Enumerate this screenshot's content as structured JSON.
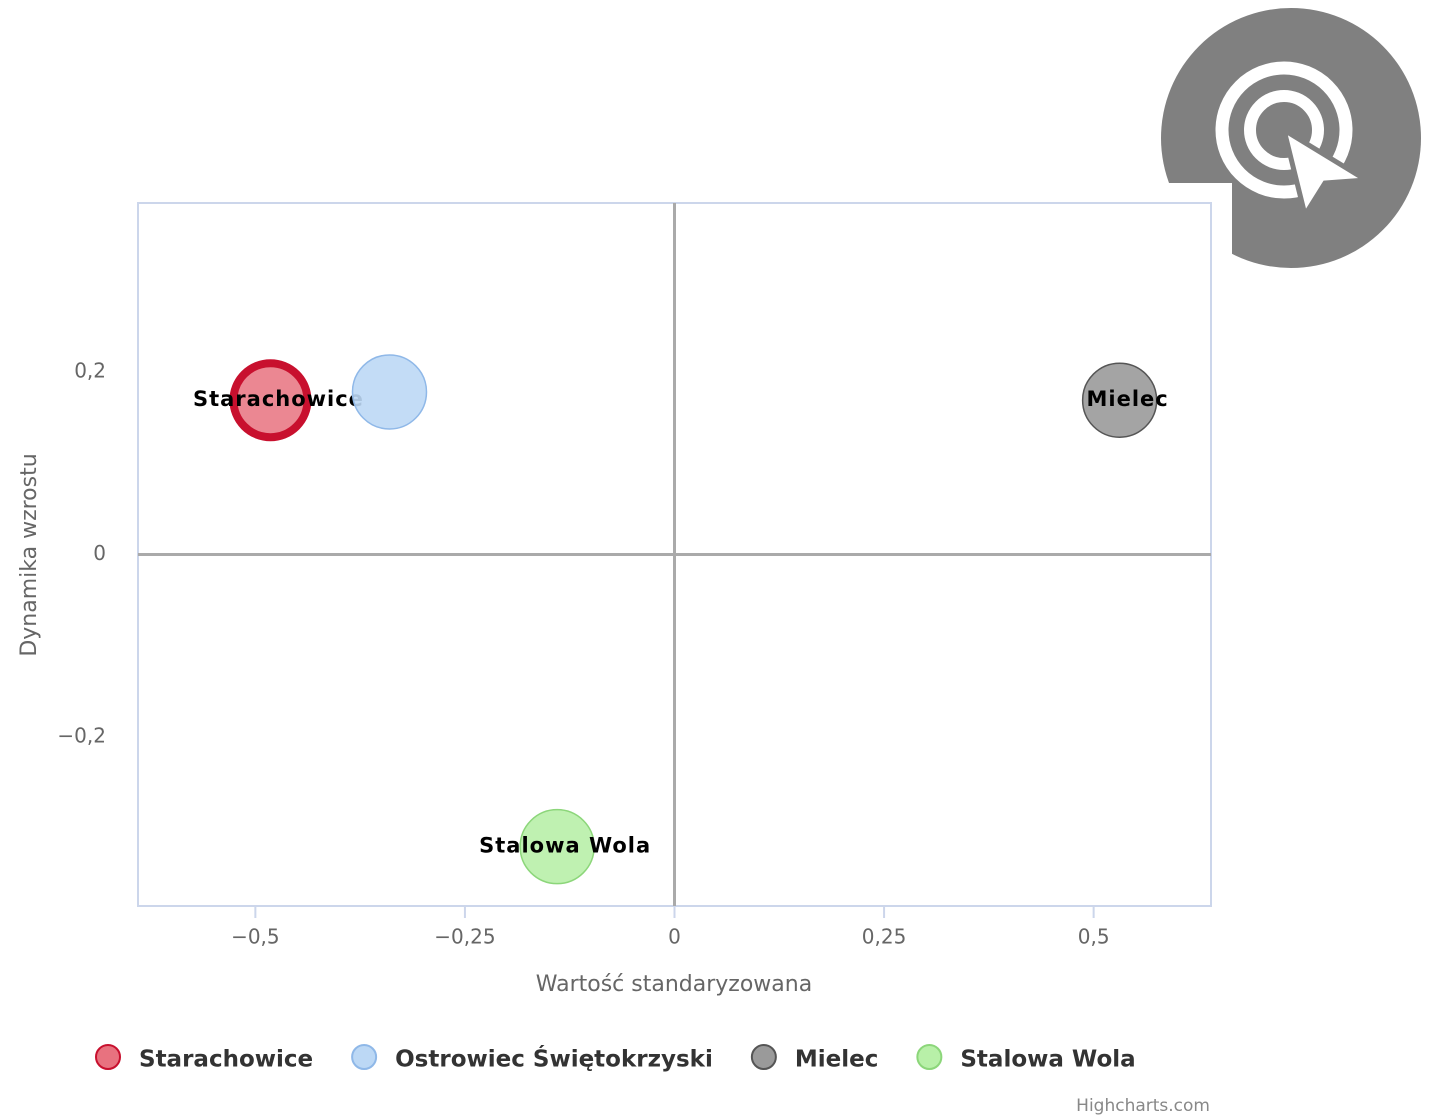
{
  "chart_data": {
    "type": "bubble",
    "xlabel": "Wartość standaryzowana",
    "ylabel": "Dynamika wzrostu",
    "credit": "Highcharts.com",
    "xlim": [
      -0.64,
      0.64
    ],
    "ylim": [
      -0.385,
      0.385
    ],
    "xticks": [
      {
        "value": -0.5,
        "label": "−0,5"
      },
      {
        "value": -0.25,
        "label": "−0,25"
      },
      0,
      {
        "value": 0.25,
        "label": "0,25"
      },
      {
        "value": 0.5,
        "label": "0,5"
      }
    ],
    "yticks": [
      {
        "value": -0.2,
        "label": "−0,2"
      },
      0,
      {
        "value": 0.2,
        "label": "0,2"
      }
    ],
    "series": [
      {
        "name": "Starachowice",
        "color": "#e8727f",
        "stroke": "#c8102e",
        "x": [
          -0.482
        ],
        "values": [
          0.169
        ]
      },
      {
        "name": "Ostrowiec Świętokrzyski",
        "color": "#bcd8f5",
        "stroke": "#8fb8e8",
        "x": [
          -0.34
        ],
        "values": [
          0.178
        ]
      },
      {
        "name": "Mielec",
        "color": "#9a9a9a",
        "stroke": "#555555",
        "x": [
          0.531
        ],
        "values": [
          0.169
        ]
      },
      {
        "name": "Stalowa Wola",
        "color": "#b8f0a8",
        "stroke": "#8cd67a",
        "x": [
          -0.14
        ],
        "values": [
          -0.32
        ]
      }
    ]
  }
}
